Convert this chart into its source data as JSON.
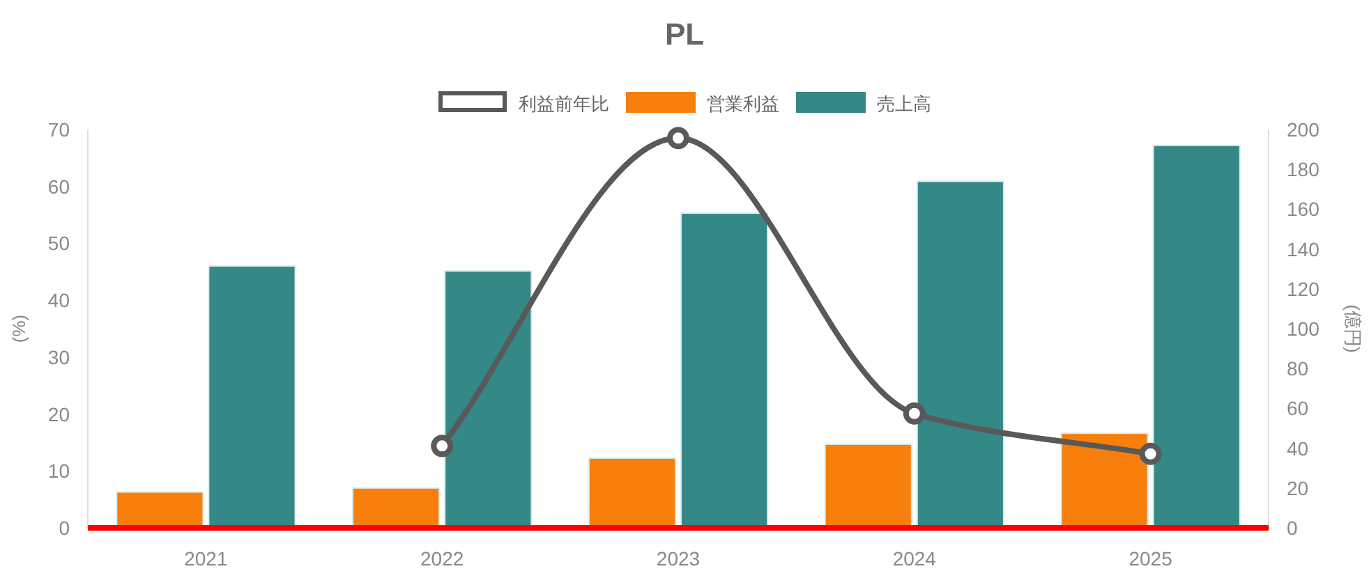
{
  "chart_data": {
    "type": "bar",
    "title": "PL",
    "categories": [
      "2021",
      "2022",
      "2023",
      "2024",
      "2025"
    ],
    "series": [
      {
        "name": "利益前年比",
        "type": "line",
        "color": "#595959",
        "values": [
          null,
          14.4,
          68.5,
          20.1,
          13.0
        ]
      },
      {
        "name": "営業利益",
        "color": "#f87f0c",
        "axis": "y2",
        "values": [
          18,
          20,
          35,
          42,
          47.5
        ]
      },
      {
        "name": "売上高",
        "color": "#348886",
        "axis": "y2",
        "values": [
          131.5,
          129,
          158,
          174,
          192
        ]
      }
    ],
    "ylabel": "(%)",
    "y2label": "(億円)",
    "ylim": [
      0,
      70
    ],
    "yticks": [
      0,
      10,
      20,
      30,
      40,
      50,
      60,
      70
    ],
    "y2lim": [
      0,
      200
    ],
    "y2ticks": [
      0,
      20,
      40,
      60,
      80,
      100,
      120,
      140,
      160,
      180,
      200
    ],
    "legend": "top",
    "grid": false,
    "marker": "circle"
  }
}
